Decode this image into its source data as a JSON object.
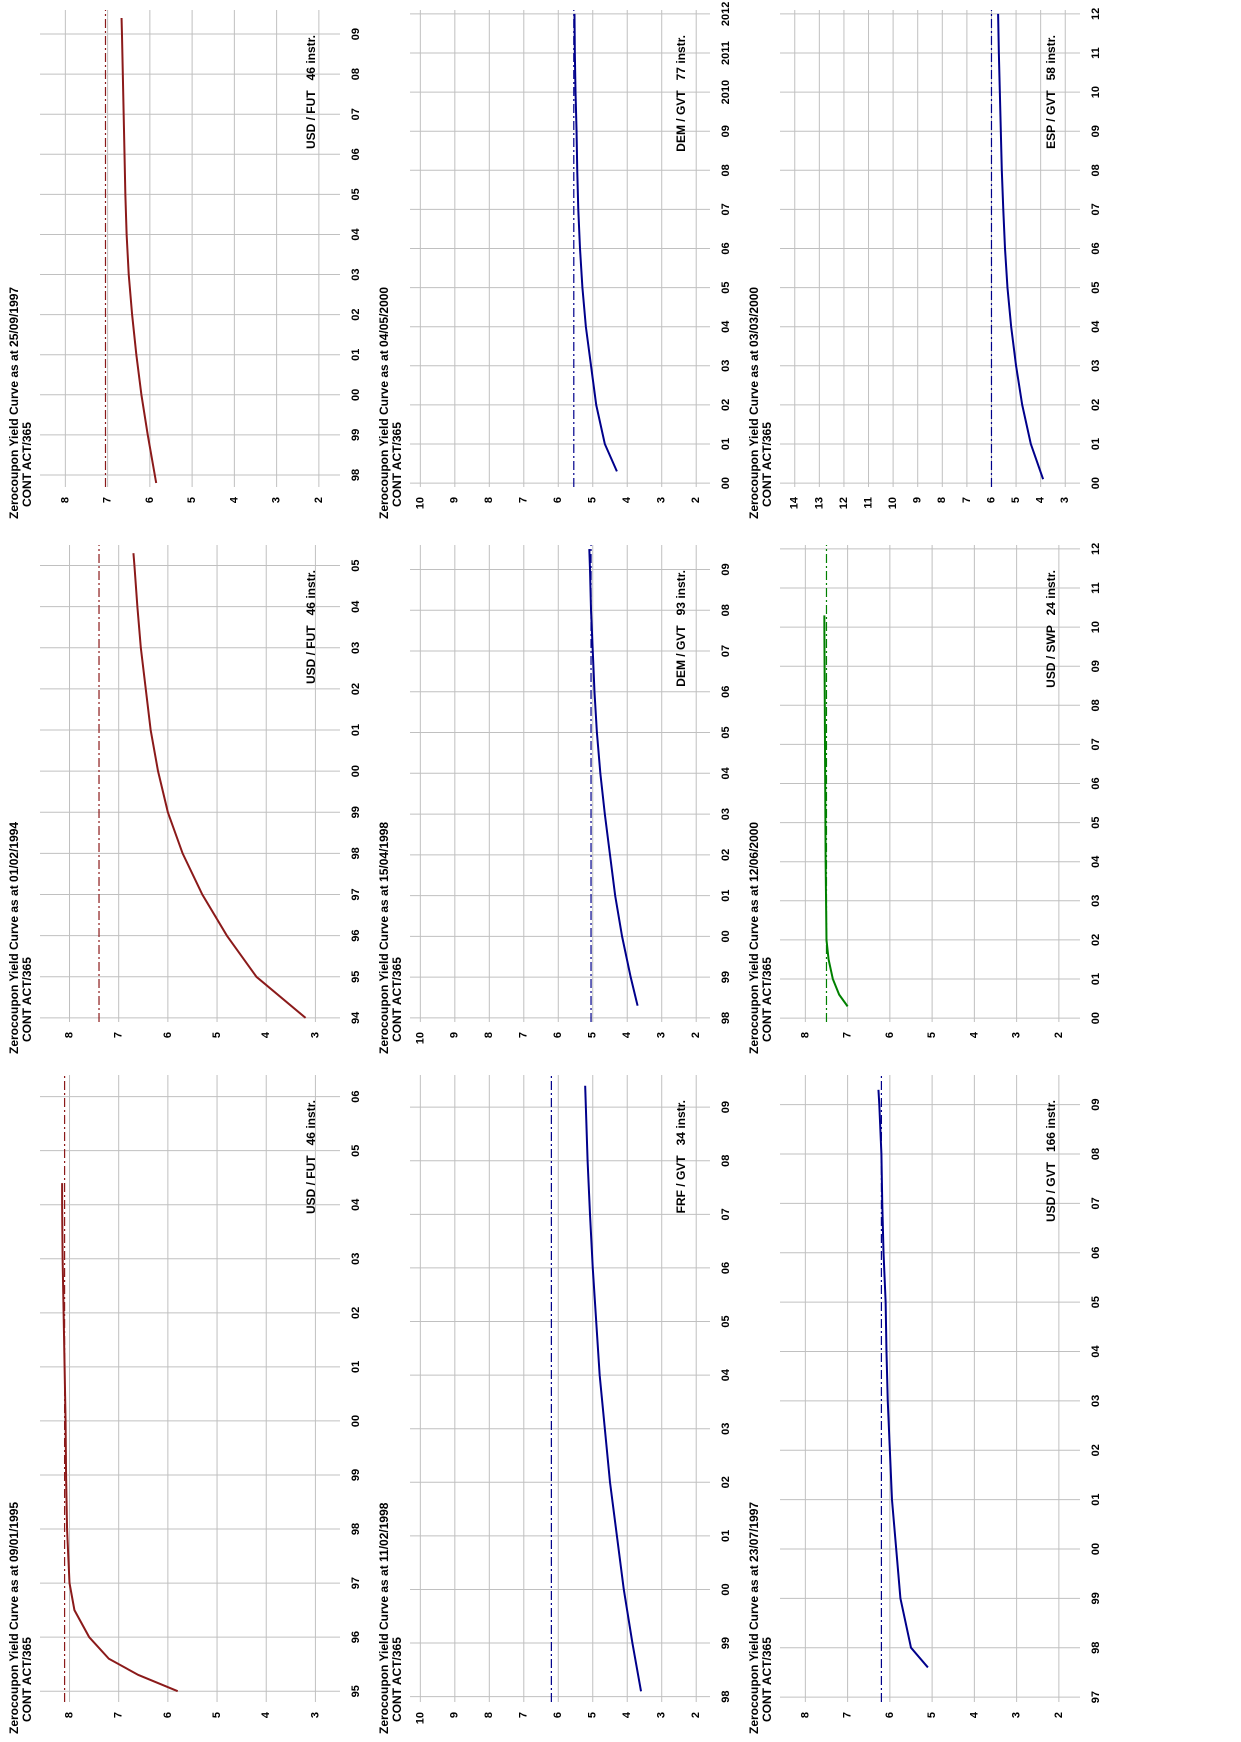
{
  "chart_data": [
    {
      "type": "line",
      "title": "Zerocoupon Yield Curve as at 25/09/1997",
      "subtitle": "CONT ACT/365",
      "annotation": "USD / FUT   46 instr.",
      "color": "#8b1a1a",
      "hline": 7.05,
      "grid": true,
      "x": [
        1997.8,
        1999,
        2000,
        2001,
        2002,
        2003,
        2004,
        2005,
        2006,
        2007,
        2008,
        2009,
        2009.4
      ],
      "values": [
        5.85,
        6.05,
        6.2,
        6.32,
        6.42,
        6.5,
        6.55,
        6.58,
        6.6,
        6.62,
        6.64,
        6.66,
        6.67
      ],
      "xlim": [
        1997.7,
        2009.6
      ],
      "xticks": [
        {
          "value": 1998,
          "label": "98"
        },
        {
          "value": 1999,
          "label": "99"
        },
        {
          "value": 2000,
          "label": "00"
        },
        {
          "value": 2001,
          "label": "01"
        },
        {
          "value": 2002,
          "label": "02"
        },
        {
          "value": 2003,
          "label": "03"
        },
        {
          "value": 2004,
          "label": "04"
        },
        {
          "value": 2005,
          "label": "05"
        },
        {
          "value": 2006,
          "label": "06"
        },
        {
          "value": 2007,
          "label": "07"
        },
        {
          "value": 2008,
          "label": "08"
        },
        {
          "value": 2009,
          "label": "09"
        }
      ],
      "ylim": [
        1.5,
        8.6
      ],
      "yticks": [
        2,
        3,
        4,
        5,
        6,
        7,
        8
      ]
    },
    {
      "type": "line",
      "title": "Zerocoupon Yield Curve as at 04/05/2000",
      "subtitle": "CONT ACT/365",
      "annotation": "DEM / GVT   77 instr.",
      "color": "#00008b",
      "hline": 5.55,
      "grid": true,
      "x": [
        2000.3,
        2001,
        2002,
        2003,
        2004,
        2005,
        2006,
        2007,
        2008,
        2009,
        2010,
        2011,
        2012
      ],
      "values": [
        4.3,
        4.65,
        4.9,
        5.05,
        5.2,
        5.3,
        5.37,
        5.42,
        5.45,
        5.47,
        5.5,
        5.52,
        5.53
      ],
      "xlim": [
        1999.9,
        2012.1
      ],
      "xticks": [
        {
          "value": 2000,
          "label": "00"
        },
        {
          "value": 2001,
          "label": "01"
        },
        {
          "value": 2002,
          "label": "02"
        },
        {
          "value": 2003,
          "label": "03"
        },
        {
          "value": 2004,
          "label": "04"
        },
        {
          "value": 2005,
          "label": "05"
        },
        {
          "value": 2006,
          "label": "06"
        },
        {
          "value": 2007,
          "label": "07"
        },
        {
          "value": 2008,
          "label": "08"
        },
        {
          "value": 2009,
          "label": "09"
        },
        2010,
        2011,
        2012
      ],
      "ylim": [
        1.6,
        10.3
      ],
      "yticks": [
        2,
        3,
        4,
        5,
        6,
        7,
        8,
        9,
        10
      ]
    },
    {
      "type": "line",
      "title": "Zerocoupon Yield Curve as at 03/03/2000",
      "subtitle": "CONT ACT/365",
      "annotation": "ESP / GVT   58 instr.",
      "color": "#00008b",
      "hline": 6.0,
      "grid": true,
      "x": [
        2000.1,
        2001,
        2002,
        2003,
        2004,
        2005,
        2006,
        2007,
        2008,
        2009,
        2010,
        2011,
        2012
      ],
      "values": [
        3.9,
        4.4,
        4.75,
        5.0,
        5.2,
        5.35,
        5.45,
        5.52,
        5.58,
        5.62,
        5.66,
        5.7,
        5.73
      ],
      "xlim": [
        1999.9,
        2012.1
      ],
      "xticks": [
        {
          "value": 2000,
          "label": "00"
        },
        {
          "value": 2001,
          "label": "01"
        },
        {
          "value": 2002,
          "label": "02"
        },
        {
          "value": 2003,
          "label": "03"
        },
        {
          "value": 2004,
          "label": "04"
        },
        {
          "value": 2005,
          "label": "05"
        },
        {
          "value": 2006,
          "label": "06"
        },
        {
          "value": 2007,
          "label": "07"
        },
        {
          "value": 2008,
          "label": "08"
        },
        {
          "value": 2009,
          "label": "09"
        },
        {
          "value": 2010,
          "label": "10"
        },
        {
          "value": 2011,
          "label": "11"
        },
        {
          "value": 2012,
          "label": "12"
        }
      ],
      "ylim": [
        2.4,
        14.6
      ],
      "yticks": [
        3,
        4,
        5,
        6,
        7,
        8,
        9,
        10,
        11,
        12,
        13,
        14
      ]
    },
    {
      "type": "line",
      "title": "Zerocoupon Yield Curve as at 01/02/1994",
      "subtitle": "CONT ACT/365",
      "annotation": "USD / FUT   46 instr.",
      "color": "#8b1a1a",
      "hline": 7.4,
      "grid": true,
      "x": [
        1994,
        1995,
        1996,
        1997,
        1998,
        1999,
        2000,
        2001,
        2002,
        2003,
        2004,
        2005,
        2005.3
      ],
      "values": [
        3.2,
        4.2,
        4.8,
        5.3,
        5.7,
        6.0,
        6.2,
        6.35,
        6.45,
        6.55,
        6.62,
        6.68,
        6.7
      ],
      "xlim": [
        1993.9,
        2005.5
      ],
      "xticks": [
        {
          "value": 1994,
          "label": "94"
        },
        {
          "value": 1995,
          "label": "95"
        },
        {
          "value": 1996,
          "label": "96"
        },
        {
          "value": 1997,
          "label": "97"
        },
        {
          "value": 1998,
          "label": "98"
        },
        {
          "value": 1999,
          "label": "99"
        },
        {
          "value": 2000,
          "label": "00"
        },
        {
          "value": 2001,
          "label": "01"
        },
        {
          "value": 2002,
          "label": "02"
        },
        {
          "value": 2003,
          "label": "03"
        },
        {
          "value": 2004,
          "label": "04"
        },
        {
          "value": 2005,
          "label": "05"
        }
      ],
      "ylim": [
        2.5,
        8.6
      ],
      "yticks": [
        3,
        4,
        5,
        6,
        7,
        8
      ]
    },
    {
      "type": "line",
      "title": "Zerocoupon Yield Curve as at 15/04/1998",
      "subtitle": "CONT ACT/365",
      "annotation": "DEM / GVT   93 instr.",
      "color": "#00008b",
      "hline": 5.05,
      "grid": true,
      "x": [
        1998.3,
        1999,
        2000,
        2001,
        2002,
        2003,
        2004,
        2005,
        2006,
        2007,
        2008,
        2009,
        2009.5
      ],
      "values": [
        3.7,
        3.9,
        4.15,
        4.35,
        4.5,
        4.65,
        4.78,
        4.88,
        4.95,
        5.0,
        5.05,
        5.08,
        5.1
      ],
      "xlim": [
        1997.9,
        2009.6
      ],
      "xticks": [
        {
          "value": 1998,
          "label": "98"
        },
        {
          "value": 1999,
          "label": "99"
        },
        {
          "value": 2000,
          "label": "00"
        },
        {
          "value": 2001,
          "label": "01"
        },
        {
          "value": 2002,
          "label": "02"
        },
        {
          "value": 2003,
          "label": "03"
        },
        {
          "value": 2004,
          "label": "04"
        },
        {
          "value": 2005,
          "label": "05"
        },
        {
          "value": 2006,
          "label": "06"
        },
        {
          "value": 2007,
          "label": "07"
        },
        {
          "value": 2008,
          "label": "08"
        },
        {
          "value": 2009,
          "label": "09"
        }
      ],
      "ylim": [
        1.6,
        10.3
      ],
      "yticks": [
        2,
        3,
        4,
        5,
        6,
        7,
        8,
        9,
        10
      ]
    },
    {
      "type": "line",
      "title": "Zerocoupon Yield Curve as at 12/06/2000",
      "subtitle": "CONT ACT/365",
      "annotation": "USD / SWP   24 instr.",
      "color": "#008000",
      "hline": 7.5,
      "grid": true,
      "x": [
        2000.3,
        2000.6,
        2001,
        2001.5,
        2002,
        2004,
        2006,
        2008,
        2010,
        2010.3
      ],
      "values": [
        7.0,
        7.2,
        7.35,
        7.45,
        7.5,
        7.52,
        7.53,
        7.54,
        7.55,
        7.55
      ],
      "xlim": [
        1999.9,
        2012.1
      ],
      "xticks": [
        {
          "value": 2000,
          "label": "00"
        },
        {
          "value": 2001,
          "label": "01"
        },
        {
          "value": 2002,
          "label": "02"
        },
        {
          "value": 2003,
          "label": "03"
        },
        {
          "value": 2004,
          "label": "04"
        },
        {
          "value": 2005,
          "label": "05"
        },
        {
          "value": 2006,
          "label": "06"
        },
        {
          "value": 2007,
          "label": "07"
        },
        {
          "value": 2008,
          "label": "08"
        },
        {
          "value": 2009,
          "label": "09"
        },
        {
          "value": 2010,
          "label": "10"
        },
        {
          "value": 2011,
          "label": "11"
        },
        {
          "value": 2012,
          "label": "12"
        }
      ],
      "ylim": [
        1.5,
        8.6
      ],
      "yticks": [
        2,
        3,
        4,
        5,
        6,
        7,
        8
      ]
    },
    {
      "type": "line",
      "title": "Zerocoupon Yield Curve as at 09/01/1995",
      "subtitle": "CONT ACT/365",
      "annotation": "USD / FUT   46 instr.",
      "color": "#8b1a1a",
      "hline": 8.1,
      "grid": true,
      "x": [
        1995,
        1995.3,
        1995.6,
        1996,
        1996.5,
        1997,
        1998,
        1999,
        2000,
        2001,
        2002,
        2003,
        2004,
        2004.4
      ],
      "values": [
        5.8,
        6.6,
        7.2,
        7.6,
        7.9,
        8.0,
        8.05,
        8.07,
        8.08,
        8.1,
        8.12,
        8.14,
        8.15,
        8.15
      ],
      "xlim": [
        1994.8,
        2006.4
      ],
      "xticks": [
        {
          "value": 1995,
          "label": "95"
        },
        {
          "value": 1996,
          "label": "96"
        },
        {
          "value": 1997,
          "label": "97"
        },
        {
          "value": 1998,
          "label": "98"
        },
        {
          "value": 1999,
          "label": "99"
        },
        {
          "value": 2000,
          "label": "00"
        },
        {
          "value": 2001,
          "label": "01"
        },
        {
          "value": 2002,
          "label": "02"
        },
        {
          "value": 2003,
          "label": "03"
        },
        {
          "value": 2004,
          "label": "04"
        },
        {
          "value": 2005,
          "label": "05"
        },
        {
          "value": 2006,
          "label": "06"
        }
      ],
      "ylim": [
        2.5,
        8.6
      ],
      "yticks": [
        3,
        4,
        5,
        6,
        7,
        8
      ]
    },
    {
      "type": "line",
      "title": "Zerocoupon Yield Curve as at 11/02/1998",
      "subtitle": "CONT ACT/365",
      "annotation": "FRF / GVT   34 instr.",
      "color": "#00008b",
      "hline": 6.2,
      "grid": true,
      "x": [
        1998.1,
        1999,
        2000,
        2001,
        2002,
        2003,
        2004,
        2005,
        2006,
        2007,
        2008,
        2009,
        2009.4
      ],
      "values": [
        3.6,
        3.85,
        4.1,
        4.3,
        4.5,
        4.65,
        4.8,
        4.9,
        5.0,
        5.08,
        5.15,
        5.2,
        5.22
      ],
      "xlim": [
        1997.9,
        2009.6
      ],
      "xticks": [
        {
          "value": 1998,
          "label": "98"
        },
        {
          "value": 1999,
          "label": "99"
        },
        {
          "value": 2000,
          "label": "00"
        },
        {
          "value": 2001,
          "label": "01"
        },
        {
          "value": 2002,
          "label": "02"
        },
        {
          "value": 2003,
          "label": "03"
        },
        {
          "value": 2004,
          "label": "04"
        },
        {
          "value": 2005,
          "label": "05"
        },
        {
          "value": 2006,
          "label": "06"
        },
        {
          "value": 2007,
          "label": "07"
        },
        {
          "value": 2008,
          "label": "08"
        },
        {
          "value": 2009,
          "label": "09"
        }
      ],
      "ylim": [
        1.6,
        10.3
      ],
      "yticks": [
        2,
        3,
        4,
        5,
        6,
        7,
        8,
        9,
        10
      ]
    },
    {
      "type": "line",
      "title": "Zerocoupon Yield Curve as at 23/07/1997",
      "subtitle": "CONT ACT/365",
      "annotation": "USD / GVT   166 instr.",
      "color": "#00008b",
      "hline": 6.2,
      "grid": true,
      "x": [
        1997.6,
        1998,
        1999,
        2000,
        2001,
        2002,
        2003,
        2004,
        2005,
        2006,
        2007,
        2008,
        2009,
        2009.3
      ],
      "values": [
        5.1,
        5.5,
        5.75,
        5.85,
        5.95,
        6.0,
        6.05,
        6.08,
        6.1,
        6.15,
        6.18,
        6.2,
        6.25,
        6.27
      ],
      "xlim": [
        1996.9,
        2009.6
      ],
      "xticks": [
        {
          "value": 1997,
          "label": "97"
        },
        {
          "value": 1998,
          "label": "98"
        },
        {
          "value": 1999,
          "label": "99"
        },
        {
          "value": 2000,
          "label": "00"
        },
        {
          "value": 2001,
          "label": "01"
        },
        {
          "value": 2002,
          "label": "02"
        },
        {
          "value": 2003,
          "label": "03"
        },
        {
          "value": 2004,
          "label": "04"
        },
        {
          "value": 2005,
          "label": "05"
        },
        {
          "value": 2006,
          "label": "06"
        },
        {
          "value": 2007,
          "label": "07"
        },
        {
          "value": 2008,
          "label": "08"
        },
        {
          "value": 2009,
          "label": "09"
        }
      ],
      "ylim": [
        1.5,
        8.6
      ],
      "yticks": [
        2,
        3,
        4,
        5,
        6,
        7,
        8
      ]
    }
  ]
}
